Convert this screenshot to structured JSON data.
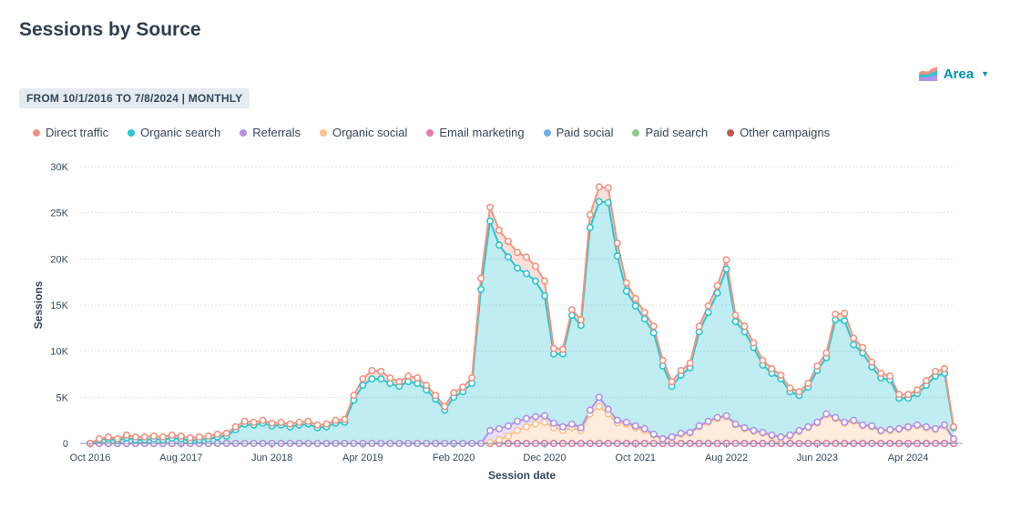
{
  "header": {
    "title": "Sessions by Source"
  },
  "chart_type_picker": {
    "label": "Area",
    "icon": "area-chart-icon"
  },
  "date_range": {
    "label": "FROM 10/1/2016 TO 7/8/2024 | MONTHLY"
  },
  "colors": {
    "direct": "#f2947f",
    "organic": "#2bc5d2",
    "referrals": "#b291e6",
    "social": "#fbc28a",
    "email": "#ea7aa8",
    "paid_social": "#6cb1ee",
    "paid_search": "#8bcc8b",
    "other": "#c0564c"
  },
  "chart_data": {
    "type": "area",
    "stacked": true,
    "title": "Sessions by Source",
    "xlabel": "Session date",
    "ylabel": "Sessions",
    "ylim": [
      0,
      30000
    ],
    "yticks": [
      0,
      5000,
      10000,
      15000,
      20000,
      25000,
      30000
    ],
    "ytick_labels": [
      "0",
      "5K",
      "10K",
      "15K",
      "20K",
      "25K",
      "30K"
    ],
    "xtick_labels": [
      "Oct 2016",
      "Aug 2017",
      "Jun 2018",
      "Apr 2019",
      "Feb 2020",
      "Dec 2020",
      "Oct 2021",
      "Aug 2022",
      "Jun 2023",
      "Apr 2024"
    ],
    "xtick_month_index": [
      0,
      10,
      20,
      30,
      40,
      50,
      60,
      70,
      80,
      90
    ],
    "x_start": "2016-10",
    "x_end": "2024-07",
    "grid": true,
    "legend_position": "top-left",
    "series": [
      {
        "name": "Other campaigns",
        "color": "#c0564c",
        "values": [
          0,
          0,
          0,
          0,
          0,
          0,
          0,
          0,
          0,
          0,
          0,
          0,
          0,
          0,
          0,
          0,
          0,
          0,
          0,
          0,
          0,
          0,
          0,
          0,
          0,
          0,
          0,
          0,
          0,
          0,
          0,
          0,
          0,
          0,
          0,
          0,
          0,
          0,
          0,
          0,
          0,
          0,
          0,
          0,
          0,
          0,
          0,
          0,
          0,
          0,
          0,
          0,
          0,
          0,
          0,
          0,
          0,
          0,
          0,
          0,
          0,
          0,
          0,
          0,
          0,
          0,
          0,
          0,
          0,
          0,
          0,
          0,
          0,
          0,
          0,
          0,
          0,
          0,
          0,
          0,
          0,
          0,
          0,
          0,
          0,
          0,
          0,
          0,
          0,
          0,
          0,
          0,
          0,
          0,
          0,
          0
        ]
      },
      {
        "name": "Paid search",
        "color": "#8bcc8b",
        "values": [
          0,
          0,
          0,
          0,
          0,
          0,
          0,
          0,
          0,
          0,
          0,
          0,
          0,
          0,
          0,
          0,
          0,
          0,
          0,
          0,
          0,
          0,
          0,
          0,
          0,
          0,
          0,
          0,
          0,
          0,
          0,
          0,
          0,
          0,
          0,
          0,
          0,
          0,
          0,
          0,
          0,
          0,
          0,
          0,
          0,
          0,
          0,
          0,
          0,
          0,
          0,
          0,
          0,
          0,
          0,
          0,
          0,
          0,
          0,
          0,
          0,
          0,
          0,
          0,
          0,
          0,
          0,
          0,
          0,
          0,
          0,
          0,
          0,
          0,
          0,
          0,
          0,
          0,
          0,
          0,
          0,
          0,
          0,
          0,
          0,
          0,
          0,
          0,
          0,
          0,
          0,
          0,
          0,
          0,
          0,
          0
        ]
      },
      {
        "name": "Paid social",
        "color": "#6cb1ee",
        "values": [
          0,
          0,
          0,
          0,
          0,
          0,
          0,
          0,
          0,
          0,
          0,
          0,
          0,
          0,
          0,
          0,
          0,
          0,
          0,
          0,
          0,
          0,
          0,
          0,
          0,
          0,
          0,
          0,
          0,
          0,
          0,
          0,
          0,
          0,
          0,
          0,
          0,
          0,
          0,
          0,
          0,
          0,
          0,
          0,
          0,
          0,
          0,
          0,
          0,
          0,
          0,
          0,
          0,
          0,
          0,
          0,
          0,
          0,
          0,
          0,
          0,
          0,
          0,
          0,
          0,
          0,
          0,
          0,
          0,
          0,
          0,
          0,
          0,
          0,
          0,
          0,
          0,
          0,
          0,
          0,
          0,
          0,
          0,
          0,
          0,
          0,
          0,
          0,
          0,
          0,
          0,
          0,
          0,
          0,
          0,
          0
        ]
      },
      {
        "name": "Email marketing",
        "color": "#ea7aa8",
        "values": [
          0,
          0,
          0,
          0,
          0,
          0,
          0,
          0,
          0,
          0,
          0,
          0,
          0,
          0,
          0,
          0,
          0,
          0,
          0,
          0,
          0,
          0,
          0,
          0,
          0,
          0,
          0,
          0,
          0,
          0,
          0,
          0,
          0,
          0,
          0,
          0,
          0,
          0,
          0,
          0,
          0,
          0,
          0,
          0,
          0,
          0,
          0,
          0,
          0,
          0,
          0,
          0,
          0,
          0,
          0,
          0,
          0,
          0,
          0,
          0,
          0,
          0,
          0,
          0,
          0,
          0,
          0,
          0,
          0,
          0,
          0,
          0,
          0,
          0,
          0,
          0,
          0,
          0,
          0,
          0,
          0,
          0,
          0,
          0,
          0,
          0,
          0,
          0,
          0,
          0,
          0,
          0,
          0,
          0,
          0,
          0
        ]
      },
      {
        "name": "Organic social",
        "color": "#fbc28a",
        "values": [
          0,
          0,
          0,
          0,
          0,
          0,
          0,
          0,
          0,
          0,
          0,
          0,
          0,
          0,
          0,
          0,
          0,
          0,
          0,
          0,
          0,
          0,
          0,
          0,
          0,
          0,
          0,
          0,
          0,
          0,
          0,
          0,
          0,
          0,
          0,
          0,
          0,
          0,
          0,
          0,
          0,
          0,
          0,
          0,
          100,
          400,
          800,
          1400,
          1800,
          2100,
          2300,
          1700,
          1400,
          1700,
          1400,
          3200,
          4000,
          3200,
          2200,
          2100,
          1700,
          1400,
          900,
          400,
          600,
          1000,
          1100,
          1800,
          2300,
          2700,
          2900,
          2000,
          1600,
          1300,
          1100,
          800,
          600,
          800,
          1300,
          1700,
          2200,
          3100,
          2700,
          2200,
          2400,
          1900,
          1800,
          1300,
          1400,
          1500,
          1700,
          1900,
          1700,
          1500,
          1900,
          400
        ]
      },
      {
        "name": "Referrals",
        "color": "#b291e6",
        "values": [
          0,
          0,
          0,
          0,
          0,
          0,
          0,
          0,
          0,
          0,
          0,
          0,
          0,
          0,
          0,
          0,
          0,
          0,
          0,
          0,
          0,
          0,
          0,
          0,
          0,
          0,
          0,
          0,
          0,
          0,
          0,
          0,
          0,
          0,
          0,
          0,
          0,
          0,
          0,
          0,
          0,
          0,
          0,
          0,
          1300,
          1200,
          1100,
          1000,
          900,
          800,
          700,
          500,
          400,
          400,
          300,
          400,
          1000,
          500,
          300,
          200,
          200,
          200,
          100,
          100,
          100,
          100,
          100,
          100,
          100,
          100,
          100,
          100,
          100,
          100,
          100,
          100,
          100,
          100,
          100,
          100,
          100,
          100,
          100,
          100,
          100,
          100,
          100,
          100,
          100,
          100,
          100,
          100,
          100,
          100,
          100,
          100
        ]
      },
      {
        "name": "Organic search",
        "color": "#2bc5d2",
        "values": [
          0,
          400,
          500,
          300,
          600,
          400,
          400,
          500,
          400,
          600,
          500,
          300,
          400,
          500,
          700,
          800,
          1500,
          2100,
          2000,
          2200,
          1900,
          2000,
          1800,
          2000,
          2100,
          1700,
          1800,
          2200,
          2300,
          4700,
          6300,
          7000,
          7000,
          6500,
          6200,
          6700,
          6500,
          5800,
          4800,
          3600,
          5000,
          5600,
          6500,
          16700,
          22700,
          19900,
          18300,
          16600,
          15700,
          14700,
          13000,
          7500,
          7900,
          11800,
          11100,
          19800,
          21200,
          22400,
          17800,
          14200,
          13000,
          11900,
          11000,
          7900,
          5500,
          6300,
          7000,
          10200,
          11800,
          13500,
          15900,
          11100,
          10400,
          9000,
          7300,
          6700,
          6300,
          4700,
          3800,
          4300,
          5600,
          6100,
          10600,
          11000,
          8200,
          7800,
          6400,
          5700,
          5400,
          3300,
          3100,
          3400,
          4500,
          5700,
          5600,
          1200
        ]
      },
      {
        "name": "Direct traffic",
        "color": "#f2947f",
        "values": [
          0,
          100,
          200,
          200,
          300,
          300,
          300,
          300,
          300,
          300,
          300,
          300,
          300,
          300,
          300,
          300,
          300,
          300,
          300,
          300,
          300,
          300,
          300,
          300,
          300,
          300,
          300,
          300,
          300,
          500,
          700,
          900,
          800,
          600,
          500,
          600,
          600,
          500,
          400,
          400,
          500,
          500,
          600,
          1200,
          1500,
          1600,
          1700,
          1700,
          1800,
          1600,
          1600,
          600,
          500,
          600,
          600,
          1400,
          1600,
          1600,
          1400,
          900,
          800,
          700,
          700,
          600,
          500,
          500,
          500,
          600,
          700,
          800,
          1000,
          700,
          600,
          500,
          500,
          500,
          400,
          400,
          400,
          400,
          500,
          500,
          600,
          800,
          700,
          600,
          500,
          500,
          400,
          400,
          400,
          400,
          500,
          500,
          500,
          100
        ]
      }
    ]
  },
  "legend": {
    "items": [
      {
        "label": "Direct traffic",
        "color": "#f2947f"
      },
      {
        "label": "Organic search",
        "color": "#2bc5d2"
      },
      {
        "label": "Referrals",
        "color": "#b291e6"
      },
      {
        "label": "Organic social",
        "color": "#fbc28a"
      },
      {
        "label": "Email marketing",
        "color": "#ea7aa8"
      },
      {
        "label": "Paid social",
        "color": "#6cb1ee"
      },
      {
        "label": "Paid search",
        "color": "#8bcc8b"
      },
      {
        "label": "Other campaigns",
        "color": "#c0564c"
      }
    ]
  }
}
